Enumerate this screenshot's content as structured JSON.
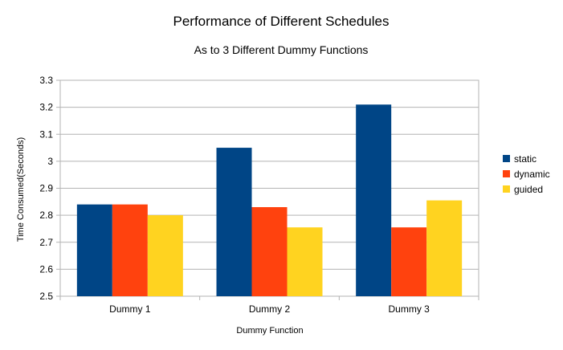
{
  "chart_data": {
    "type": "bar",
    "title": "Performance of Different Schedules",
    "subtitle": "As to 3 Different Dummy Functions",
    "xlabel": "Dummy Function",
    "ylabel": "Time Consumed(Seconds)",
    "ylim": [
      2.5,
      3.3
    ],
    "yticks": [
      "2.5",
      "2.6",
      "2.7",
      "2.8",
      "2.9",
      "3",
      "3.1",
      "3.2",
      "3.3"
    ],
    "categories": [
      "Dummy 1",
      "Dummy 2",
      "Dummy 3"
    ],
    "series": [
      {
        "name": "static",
        "color": "#004586",
        "values": [
          2.84,
          3.05,
          3.21
        ]
      },
      {
        "name": "dynamic",
        "color": "#ff420e",
        "values": [
          2.84,
          2.83,
          2.755
        ]
      },
      {
        "name": "guided",
        "color": "#ffd320",
        "values": [
          2.8,
          2.755,
          2.855
        ]
      }
    ],
    "grid": true,
    "legend_position": "right"
  }
}
